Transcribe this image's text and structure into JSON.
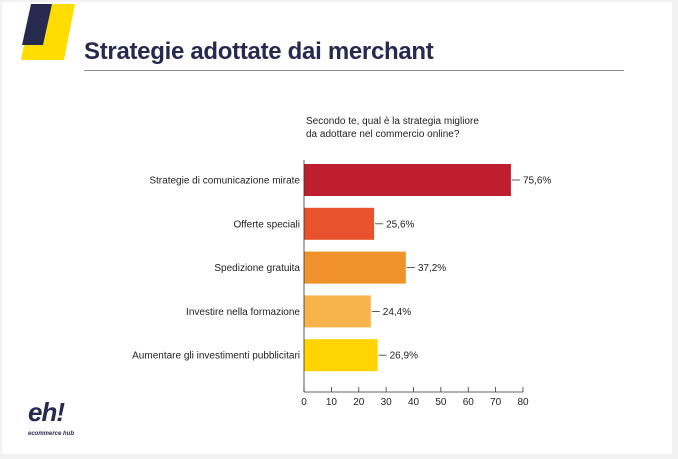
{
  "header": {
    "title": "Strategie adottate dai merchant"
  },
  "brand": {
    "logo_text": "eh!",
    "tagline": "ecommerce hub"
  },
  "colors": {
    "navy": "#262a4f",
    "yellow": "#ffdd00"
  },
  "chart_data": {
    "type": "bar",
    "orientation": "horizontal",
    "title": "Secondo te, qual è la strategia migliore\nda adottare nel commercio online?",
    "title_lines": [
      "Secondo te, qual è la strategia migliore",
      "da adottare nel commercio online?"
    ],
    "categories": [
      "Strategie di comunicazione mirate",
      "Offerte speciali",
      "Spedizione gratuita",
      "Investire nella formazione",
      "Aumentare gli investimenti pubblicitari"
    ],
    "values": [
      75.6,
      25.6,
      37.2,
      24.4,
      26.9
    ],
    "data_labels": [
      "75,6%",
      "25,6%",
      "37,2%",
      "24,4%",
      "26,9%"
    ],
    "bar_colors": [
      "#be1e2d",
      "#e8532e",
      "#f0922b",
      "#f8b34a",
      "#ffd400"
    ],
    "xlim": [
      0,
      80
    ],
    "xticks": [
      "0",
      "10",
      "20",
      "30",
      "40",
      "50",
      "60",
      "70",
      "80"
    ],
    "grid": false,
    "xlabel": "",
    "ylabel": ""
  }
}
